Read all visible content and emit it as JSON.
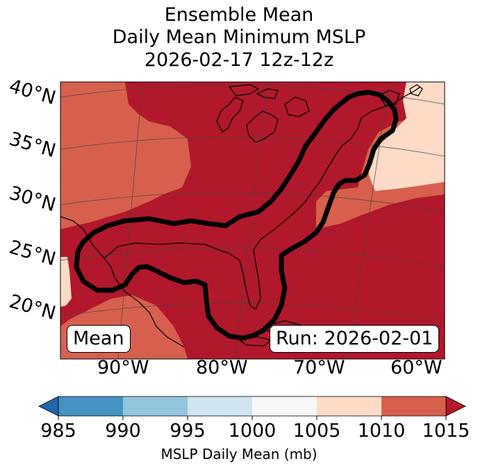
{
  "title": {
    "line1": "Ensemble Mean",
    "line2": "Daily Mean Minimum MSLP",
    "line3": "2026-02-17 12z-12z"
  },
  "map": {
    "lat_labels": [
      "40°N",
      "35°N",
      "30°N",
      "25°N",
      "20°N"
    ],
    "lon_labels": [
      "90°W",
      "80°W",
      "70°W",
      "60°W"
    ],
    "mean_badge": "Mean",
    "run_badge": "Run: 2026-02-01",
    "fill_colors": {
      "1005-1010": "#fddbc7",
      "1010-1015": "#d6604d",
      "1015+": "#b2182b"
    }
  },
  "colorbar": {
    "ticks": [
      "985",
      "990",
      "995",
      "1000",
      "1005",
      "1010",
      "1015"
    ],
    "colors": [
      "#2166ac",
      "#4393c3",
      "#92c5de",
      "#d1e5f0",
      "#f7f7f7",
      "#fddbc7",
      "#d6604d",
      "#b2182b"
    ],
    "label": "MSLP Daily Mean (mb)"
  }
}
